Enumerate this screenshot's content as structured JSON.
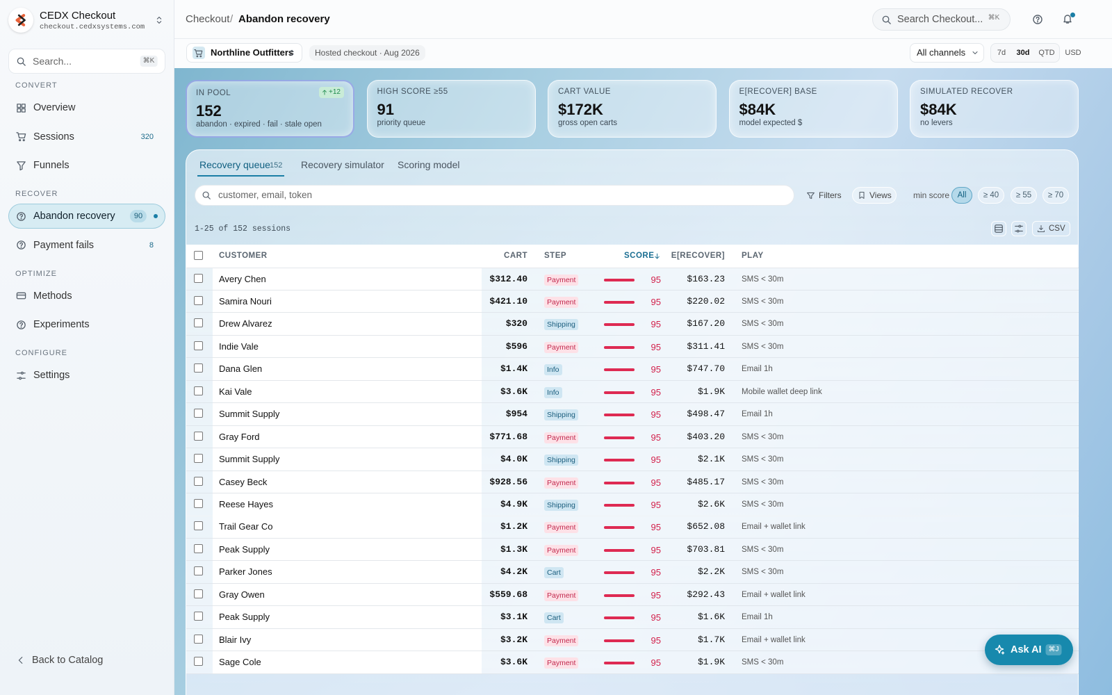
{
  "sidebar": {
    "brand": {
      "name": "CEDX Checkout",
      "domain": "checkout.cedxsystems.com"
    },
    "search": {
      "placeholder": "Search...",
      "shortcut": "⌘K"
    },
    "sections": [
      {
        "title": "CONVERT",
        "items": [
          {
            "label": "Overview"
          },
          {
            "label": "Sessions",
            "badge": 320
          },
          {
            "label": "Funnels"
          }
        ]
      },
      {
        "title": "RECOVER",
        "items": [
          {
            "label": "Abandon recovery",
            "badge": 90,
            "active": true
          },
          {
            "label": "Payment fails",
            "badge": 8
          }
        ]
      },
      {
        "title": "OPTIMIZE",
        "items": [
          {
            "label": "Methods"
          },
          {
            "label": "Experiments"
          }
        ]
      },
      {
        "title": "CONFIGURE",
        "items": [
          {
            "label": "Settings"
          }
        ]
      }
    ],
    "back": "Back to Catalog"
  },
  "header": {
    "breadcrumb": [
      "Checkout",
      "Abandon recovery"
    ],
    "search": "Search Checkout...",
    "shortcut": "⌘K"
  },
  "toolbar": {
    "store": "Northline Outfitters",
    "meta": "Hosted checkout · Aug 2026",
    "channel": "All channels",
    "ranges": [
      "7d",
      "30d",
      "QTD"
    ],
    "active_range": 1,
    "currency": "USD"
  },
  "kpis": [
    {
      "label": "IN POOL",
      "value": "152",
      "sub": "abandon · expired · fail · stale open",
      "delta": "+12"
    },
    {
      "label": "HIGH SCORE ≥55",
      "value": "91",
      "sub": "priority queue"
    },
    {
      "label": "CART VALUE",
      "value": "$172K",
      "sub": "gross open carts"
    },
    {
      "label": "E[RECOVER] BASE",
      "value": "$84K",
      "sub": "model expected $"
    },
    {
      "label": "SIMULATED RECOVER",
      "value": "$84K",
      "sub": "no levers"
    }
  ],
  "tabs": [
    {
      "label": "Recovery queue",
      "count": 152
    },
    {
      "label": "Recovery simulator"
    },
    {
      "label": "Scoring model"
    }
  ],
  "filters": {
    "placeholder": "customer, email, token",
    "filters": "Filters",
    "views": "Views",
    "min_score": "min score",
    "chips": [
      "All",
      "≥ 40",
      "≥ 55",
      "≥ 70"
    ],
    "active_chip": 0
  },
  "summary": {
    "text": "1-25 of 152 sessions",
    "csv": "CSV"
  },
  "table": {
    "columns": [
      "CUSTOMER",
      "CART",
      "STEP",
      "SCORE",
      "E[RECOVER]",
      "PLAY"
    ],
    "rows": [
      [
        "Avery Chen",
        "$312.40",
        "Payment",
        95,
        "$163.23",
        "SMS < 30m"
      ],
      [
        "Samira Nouri",
        "$421.10",
        "Payment",
        95,
        "$220.02",
        "SMS < 30m"
      ],
      [
        "Drew Alvarez",
        "$320",
        "Shipping",
        95,
        "$167.20",
        "SMS < 30m"
      ],
      [
        "Indie Vale",
        "$596",
        "Payment",
        95,
        "$311.41",
        "SMS < 30m"
      ],
      [
        "Dana Glen",
        "$1.4K",
        "Info",
        95,
        "$747.70",
        "Email 1h"
      ],
      [
        "Kai Vale",
        "$3.6K",
        "Info",
        95,
        "$1.9K",
        "Mobile wallet deep link"
      ],
      [
        "Summit Supply",
        "$954",
        "Shipping",
        95,
        "$498.47",
        "Email 1h"
      ],
      [
        "Gray Ford",
        "$771.68",
        "Payment",
        95,
        "$403.20",
        "SMS < 30m"
      ],
      [
        "Summit Supply",
        "$4.0K",
        "Shipping",
        95,
        "$2.1K",
        "SMS < 30m"
      ],
      [
        "Casey Beck",
        "$928.56",
        "Payment",
        95,
        "$485.17",
        "SMS < 30m"
      ],
      [
        "Reese Hayes",
        "$4.9K",
        "Shipping",
        95,
        "$2.6K",
        "SMS < 30m"
      ],
      [
        "Trail Gear Co",
        "$1.2K",
        "Payment",
        95,
        "$652.08",
        "Email + wallet link"
      ],
      [
        "Peak Supply",
        "$1.3K",
        "Payment",
        95,
        "$703.81",
        "SMS < 30m"
      ],
      [
        "Parker Jones",
        "$4.2K",
        "Cart",
        95,
        "$2.2K",
        "SMS < 30m"
      ],
      [
        "Gray Owen",
        "$559.68",
        "Payment",
        95,
        "$292.43",
        "Email + wallet link"
      ],
      [
        "Peak Supply",
        "$3.1K",
        "Cart",
        95,
        "$1.6K",
        "Email 1h"
      ],
      [
        "Blair Ivy",
        "$3.2K",
        "Payment",
        95,
        "$1.7K",
        "Email + wallet link"
      ],
      [
        "Sage Cole",
        "$3.6K",
        "Payment",
        95,
        "$1.9K",
        "SMS < 30m"
      ]
    ]
  },
  "ask_ai": {
    "label": "Ask AI",
    "shortcut": "⌘J"
  }
}
